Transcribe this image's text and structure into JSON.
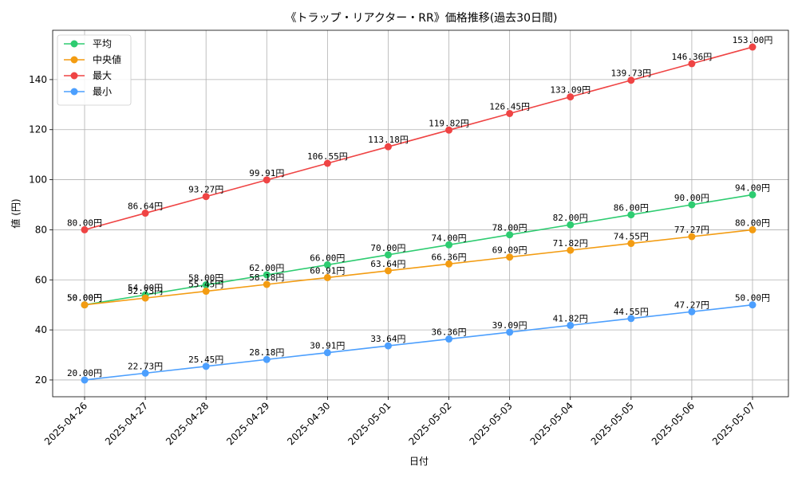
{
  "chart_data": {
    "type": "line",
    "title": "《トラップ・リアクター・RR》価格推移(過去30日間)",
    "xlabel": "日付",
    "ylabel": "値 (円)",
    "ylim": [
      13.3,
      159.7
    ],
    "yticks": [
      20,
      40,
      60,
      80,
      100,
      120,
      140
    ],
    "grid": true,
    "legend_position": "top-left",
    "value_suffix": "円",
    "categories": [
      "2025-04-26",
      "2025-04-27",
      "2025-04-28",
      "2025-04-29",
      "2025-04-30",
      "2025-05-01",
      "2025-05-02",
      "2025-05-03",
      "2025-05-04",
      "2025-05-05",
      "2025-05-06",
      "2025-05-07"
    ],
    "series": [
      {
        "name": "平均",
        "color": "#2ecc71",
        "values": [
          50.0,
          54.0,
          58.0,
          62.0,
          66.0,
          70.0,
          74.0,
          78.0,
          82.0,
          86.0,
          90.0,
          94.0
        ]
      },
      {
        "name": "中央値",
        "color": "#f39c12",
        "values": [
          50.0,
          52.73,
          55.45,
          58.18,
          60.91,
          63.64,
          66.36,
          69.09,
          71.82,
          74.55,
          77.27,
          80.0
        ]
      },
      {
        "name": "最大",
        "color": "#ef4444",
        "values": [
          80.0,
          86.64,
          93.27,
          99.91,
          106.55,
          113.18,
          119.82,
          126.45,
          133.09,
          139.73,
          146.36,
          153.0
        ]
      },
      {
        "name": "最小",
        "color": "#4c9ffe",
        "values": [
          20.0,
          22.73,
          25.45,
          28.18,
          30.91,
          33.64,
          36.36,
          39.09,
          41.82,
          44.55,
          47.27,
          50.0
        ]
      }
    ]
  }
}
